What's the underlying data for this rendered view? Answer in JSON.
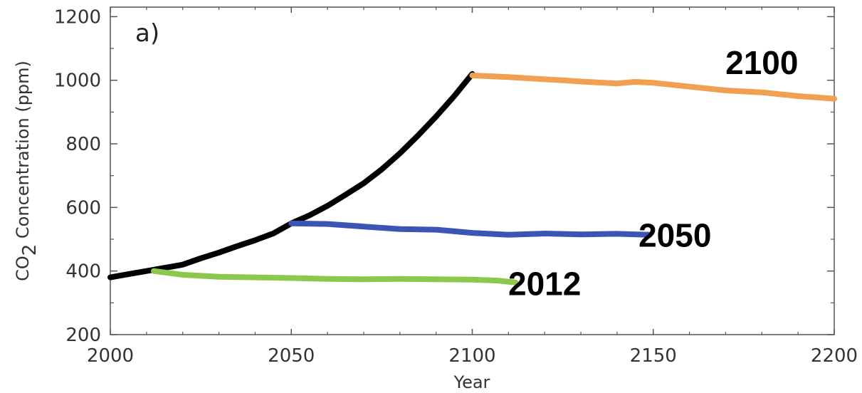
{
  "chart_data": {
    "type": "line",
    "panel_label": "a)",
    "xlabel": "Year",
    "ylabel_prefix": "CO",
    "ylabel_sub": "2",
    "ylabel_suffix": " Concentration (ppm)",
    "xlim": [
      2000,
      2200
    ],
    "ylim": [
      200,
      1230
    ],
    "x_ticks": [
      2000,
      2050,
      2100,
      2150,
      2200
    ],
    "y_ticks": [
      200,
      400,
      600,
      800,
      1000,
      1200
    ],
    "series": [
      {
        "color": "#000000",
        "x": [
          2000,
          2005,
          2010,
          2015,
          2020,
          2025,
          2030,
          2035,
          2040,
          2045,
          2050,
          2055,
          2060,
          2065,
          2070,
          2075,
          2080,
          2085,
          2090,
          2095,
          2100
        ],
        "y": [
          380,
          390,
          400,
          410,
          420,
          440,
          458,
          478,
          497,
          518,
          550,
          575,
          605,
          640,
          676,
          720,
          770,
          826,
          886,
          950,
          1020
        ]
      },
      {
        "color": "#f0a050",
        "x": [
          2100,
          2110,
          2120,
          2125,
          2130,
          2140,
          2145,
          2150,
          2160,
          2170,
          2180,
          2190,
          2200
        ],
        "y": [
          1015,
          1010,
          1003,
          1000,
          996,
          990,
          995,
          992,
          980,
          968,
          962,
          950,
          942
        ]
      },
      {
        "color": "#3a55b4",
        "x": [
          2050,
          2060,
          2070,
          2080,
          2090,
          2100,
          2110,
          2120,
          2130,
          2140,
          2149
        ],
        "y": [
          550,
          548,
          540,
          532,
          530,
          520,
          514,
          518,
          515,
          517,
          514
        ]
      },
      {
        "color": "#8cc850",
        "x": [
          2012,
          2020,
          2030,
          2040,
          2050,
          2060,
          2070,
          2080,
          2090,
          2100,
          2107,
          2112
        ],
        "y": [
          400,
          388,
          382,
          380,
          378,
          375,
          374,
          375,
          374,
          373,
          370,
          364
        ]
      }
    ],
    "annotations": [
      {
        "text": "2100",
        "x": 2180,
        "y": 1055
      },
      {
        "text": "2050",
        "x": 2156,
        "y": 512
      },
      {
        "text": "2012",
        "x": 2120,
        "y": 360
      }
    ]
  }
}
